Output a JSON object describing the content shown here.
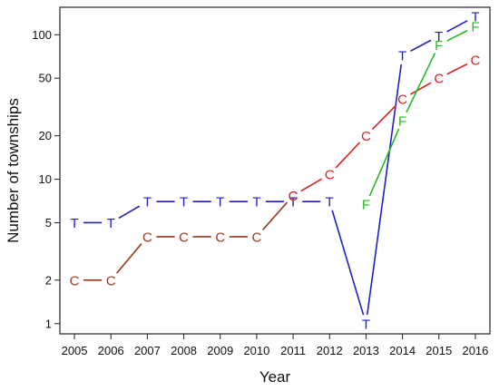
{
  "chart_data": {
    "type": "line",
    "title": "",
    "xlabel": "Year",
    "ylabel": "Number of townships",
    "y_scale": "log",
    "ylim": [
      0.85,
      155
    ],
    "xlim": [
      2004.6,
      2016.4
    ],
    "grid": false,
    "legend": "none",
    "x_ticks": [
      2005,
      2006,
      2007,
      2008,
      2009,
      2010,
      2011,
      2012,
      2013,
      2014,
      2015,
      2016
    ],
    "y_ticks": [
      1,
      2,
      5,
      10,
      20,
      50,
      100
    ],
    "series": [
      {
        "marker": "T",
        "color": "#1f1fc8",
        "points": [
          {
            "x": 2005,
            "y": 5
          },
          {
            "x": 2006,
            "y": 5
          },
          {
            "x": 2007,
            "y": 7
          },
          {
            "x": 2008,
            "y": 7
          },
          {
            "x": 2009,
            "y": 7
          },
          {
            "x": 2010,
            "y": 7
          },
          {
            "x": 2011,
            "y": 7
          },
          {
            "x": 2012,
            "y": 7
          },
          {
            "x": 2013,
            "y": 1
          },
          {
            "x": 2014,
            "y": 72
          },
          {
            "x": 2015,
            "y": 98
          },
          {
            "x": 2016,
            "y": 134
          }
        ]
      },
      {
        "marker": "C",
        "color": "#993a1f",
        "points": [
          {
            "x": 2005,
            "y": 2
          },
          {
            "x": 2006,
            "y": 2
          },
          {
            "x": 2007,
            "y": 4
          },
          {
            "x": 2008,
            "y": 4
          },
          {
            "x": 2009,
            "y": 4
          },
          {
            "x": 2010,
            "y": 4
          },
          {
            "x": 2011,
            "y": 7.7
          }
        ]
      },
      {
        "marker": "C",
        "color": "#dd1f1f",
        "points": [
          {
            "x": 2011,
            "y": 7.7
          },
          {
            "x": 2012,
            "y": 10.8
          },
          {
            "x": 2013,
            "y": 20
          },
          {
            "x": 2014,
            "y": 36
          },
          {
            "x": 2015,
            "y": 50
          },
          {
            "x": 2016,
            "y": 67
          }
        ]
      },
      {
        "marker": "F",
        "color": "#22bb22",
        "points": [
          {
            "x": 2013,
            "y": 6.7
          },
          {
            "x": 2014,
            "y": 25.5
          },
          {
            "x": 2015,
            "y": 85
          },
          {
            "x": 2016,
            "y": 114
          }
        ]
      }
    ]
  }
}
